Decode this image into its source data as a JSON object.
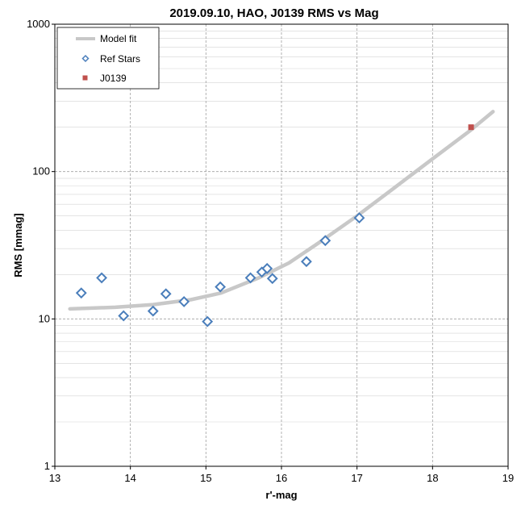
{
  "chart_data": {
    "type": "scatter",
    "title": "2019.09.10, HAO, J0139 RMS vs Mag",
    "xlabel": "r'-mag",
    "ylabel": "RMS [mmag]",
    "xlim": [
      13,
      19
    ],
    "ylim": [
      1,
      1000
    ],
    "y_scale": "log",
    "x_ticks": [
      13,
      14,
      15,
      16,
      17,
      18,
      19
    ],
    "y_ticks": [
      1,
      10,
      100,
      1000
    ],
    "grid": true,
    "legend_position": "top-left",
    "colors": {
      "model_fit": "#c8c8c8",
      "ref_stars": "#4a7ebb",
      "target": "#c0504d"
    },
    "series": [
      {
        "name": "Model fit",
        "kind": "line",
        "x": [
          13.2,
          13.8,
          14.3,
          14.8,
          15.2,
          15.7,
          16.1,
          16.5,
          17.0,
          17.5,
          18.0,
          18.5,
          18.8
        ],
        "y": [
          11.7,
          12.0,
          12.5,
          13.5,
          15.0,
          19.0,
          24.0,
          33.0,
          50.0,
          78.0,
          122.0,
          190.0,
          255.0
        ]
      },
      {
        "name": "Ref Stars",
        "kind": "scatter",
        "marker": "diamond",
        "x": [
          13.35,
          13.62,
          13.91,
          14.3,
          14.47,
          14.71,
          15.02,
          15.19,
          15.59,
          15.74,
          15.81,
          15.88,
          16.33,
          16.58,
          17.03
        ],
        "y": [
          15.0,
          19.0,
          10.5,
          11.3,
          14.8,
          13.1,
          9.6,
          16.5,
          19.0,
          20.8,
          22.0,
          18.8,
          24.5,
          34.0,
          48.5
        ]
      },
      {
        "name": "J0139",
        "kind": "scatter",
        "marker": "square",
        "x": [
          18.51
        ],
        "y": [
          200.0
        ]
      }
    ]
  }
}
